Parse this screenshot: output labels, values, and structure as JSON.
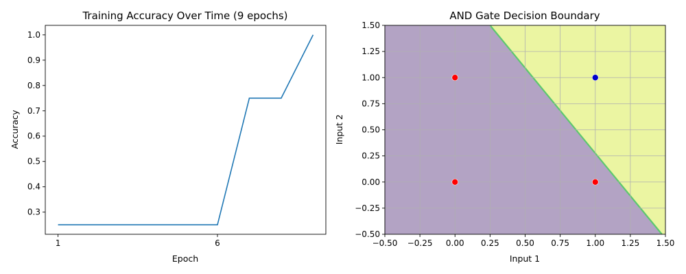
{
  "chart_data": [
    {
      "type": "line",
      "title": "Training Accuracy Over Time (9 epochs)",
      "xlabel": "Epoch",
      "ylabel": "Accuracy",
      "x": [
        1,
        2,
        3,
        4,
        5,
        6,
        7,
        8,
        9
      ],
      "y": [
        0.25,
        0.25,
        0.25,
        0.25,
        0.25,
        0.25,
        0.75,
        0.75,
        1.0
      ],
      "xlim": [
        0.6,
        9.4
      ],
      "ylim": [
        0.2125,
        1.0375
      ],
      "xticks": [
        1,
        6
      ],
      "xtick_labels": [
        "1",
        "6"
      ],
      "yticks": [
        0.3,
        0.4,
        0.5,
        0.6,
        0.7,
        0.8,
        0.9,
        1.0
      ],
      "ytick_labels": [
        "0.3",
        "0.4",
        "0.5",
        "0.6",
        "0.7",
        "0.8",
        "0.9",
        "1.0"
      ],
      "grid": false,
      "line_color": "#1f77b4"
    },
    {
      "type": "scatter",
      "title": "AND Gate Decision Boundary",
      "xlabel": "Input 1",
      "ylabel": "Input 2",
      "xlim": [
        -0.5,
        1.5
      ],
      "ylim": [
        -0.5,
        1.5
      ],
      "xticks": [
        -0.5,
        -0.25,
        0.0,
        0.25,
        0.5,
        0.75,
        1.0,
        1.25,
        1.5
      ],
      "xtick_labels": [
        "−0.50",
        "−0.25",
        "0.00",
        "0.25",
        "0.50",
        "0.75",
        "1.00",
        "1.25",
        "1.50"
      ],
      "yticks": [
        -0.5,
        -0.25,
        0.0,
        0.25,
        0.5,
        0.75,
        1.0,
        1.25,
        1.5
      ],
      "ytick_labels": [
        "−0.50",
        "−0.25",
        "0.00",
        "0.25",
        "0.50",
        "0.75",
        "1.00",
        "1.25",
        "1.50"
      ],
      "grid": true,
      "points": [
        {
          "x": 0,
          "y": 0,
          "class": 0
        },
        {
          "x": 0,
          "y": 1,
          "class": 0
        },
        {
          "x": 1,
          "y": 0,
          "class": 0
        },
        {
          "x": 1,
          "y": 1,
          "class": 1
        }
      ],
      "boundary_line": [
        [
          0.25,
          1.5
        ],
        [
          1.475,
          -0.5
        ]
      ],
      "colors": {
        "class_0_region": "#b3a3c4",
        "class_1_region": "#ebf5a2",
        "boundary": "#5cc86e",
        "class_0_point": "#ff0000",
        "class_1_point": "#0000cc",
        "grid": "#b0b0b0"
      }
    }
  ]
}
